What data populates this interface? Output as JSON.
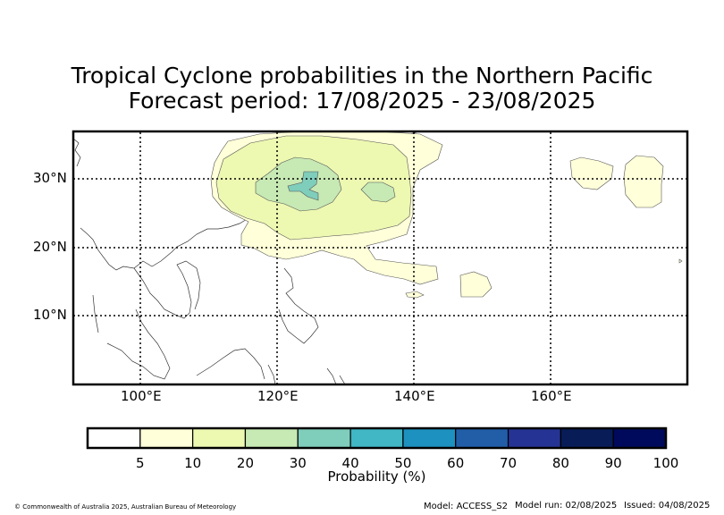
{
  "header": {
    "title_line1": "Tropical Cyclone probabilities in the Northern Pacific",
    "title_line2": "Forecast period: 17/08/2025 - 23/08/2025"
  },
  "map": {
    "lat_labels": [
      "30°N",
      "20°N",
      "10°N"
    ],
    "lon_labels": [
      "100°E",
      "120°E",
      "140°E",
      "160°E"
    ]
  },
  "colorbar": {
    "title": "Probability (%)",
    "ticks": [
      "5",
      "10",
      "20",
      "30",
      "40",
      "50",
      "60",
      "70",
      "80",
      "90",
      "100"
    ],
    "colors": [
      "#ffffff",
      "#ffffd9",
      "#edf8b1",
      "#c7e9b4",
      "#7fcdbb",
      "#41b6c4",
      "#1d91c0",
      "#225ea8",
      "#253494",
      "#081d58",
      "#000a5c"
    ]
  },
  "footer": {
    "copyright": "© Commonwealth of Australia 2025, Australian Bureau of Meteorology",
    "model": "Model: ACCESS_S2",
    "model_run": "Model run: 02/08/2025",
    "issued": "Issued: 04/08/2025"
  }
}
